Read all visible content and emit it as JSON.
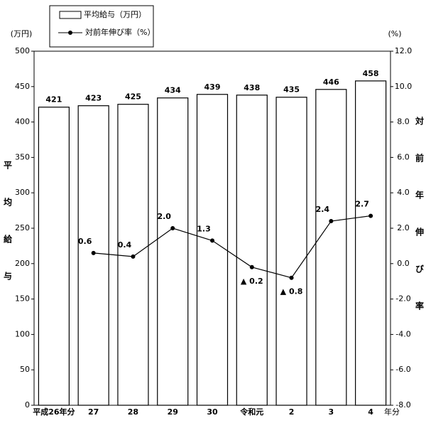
{
  "chart_data": {
    "type": "bar",
    "legend": [
      "平均給与（万円）",
      "対前年伸び率（%）"
    ],
    "y_unit": "(万円)",
    "y2_unit": "(%)",
    "y_label": "平均給与",
    "y2_label": "対前年伸び率",
    "x_label": "年分",
    "categories": [
      "平成26年分",
      "27",
      "28",
      "29",
      "30",
      "令和元",
      "2",
      "3",
      "4"
    ],
    "series": [
      {
        "name": "平均給与（万円）",
        "type": "bar",
        "color": "#ffffff",
        "values": [
          421,
          423,
          425,
          434,
          439,
          438,
          435,
          446,
          458
        ]
      },
      {
        "name": "対前年伸び率（%）",
        "type": "line",
        "axis": "y2",
        "color": "#000000",
        "values": [
          null,
          0.6,
          0.4,
          2.0,
          1.3,
          -0.2,
          -0.8,
          2.4,
          2.7
        ],
        "value_labels": [
          null,
          "0.6",
          "0.4",
          "2.0",
          "1.3",
          "▲ 0.2",
          "▲ 0.8",
          "2.4",
          "2.7"
        ]
      }
    ],
    "ylim": [
      0,
      500
    ],
    "yticks": [
      0,
      50,
      100,
      150,
      200,
      250,
      300,
      350,
      400,
      450,
      500
    ],
    "y2lim": [
      -8,
      12
    ],
    "y2ticks": [
      {
        "value": -8,
        "label": "-8.0"
      },
      {
        "value": -6,
        "label": "-6.0"
      },
      {
        "value": -4,
        "label": "-4.0"
      },
      {
        "value": -2,
        "label": "-2.0"
      },
      {
        "value": 0,
        "label": "0.0"
      },
      {
        "value": 2,
        "label": "2.0"
      },
      {
        "value": 4,
        "label": "4.0"
      },
      {
        "value": 6,
        "label": "6.0"
      },
      {
        "value": 8,
        "label": "8.0"
      },
      {
        "value": 10,
        "label": "10.0"
      },
      {
        "value": 12,
        "label": "12.0"
      }
    ],
    "grid": false
  }
}
